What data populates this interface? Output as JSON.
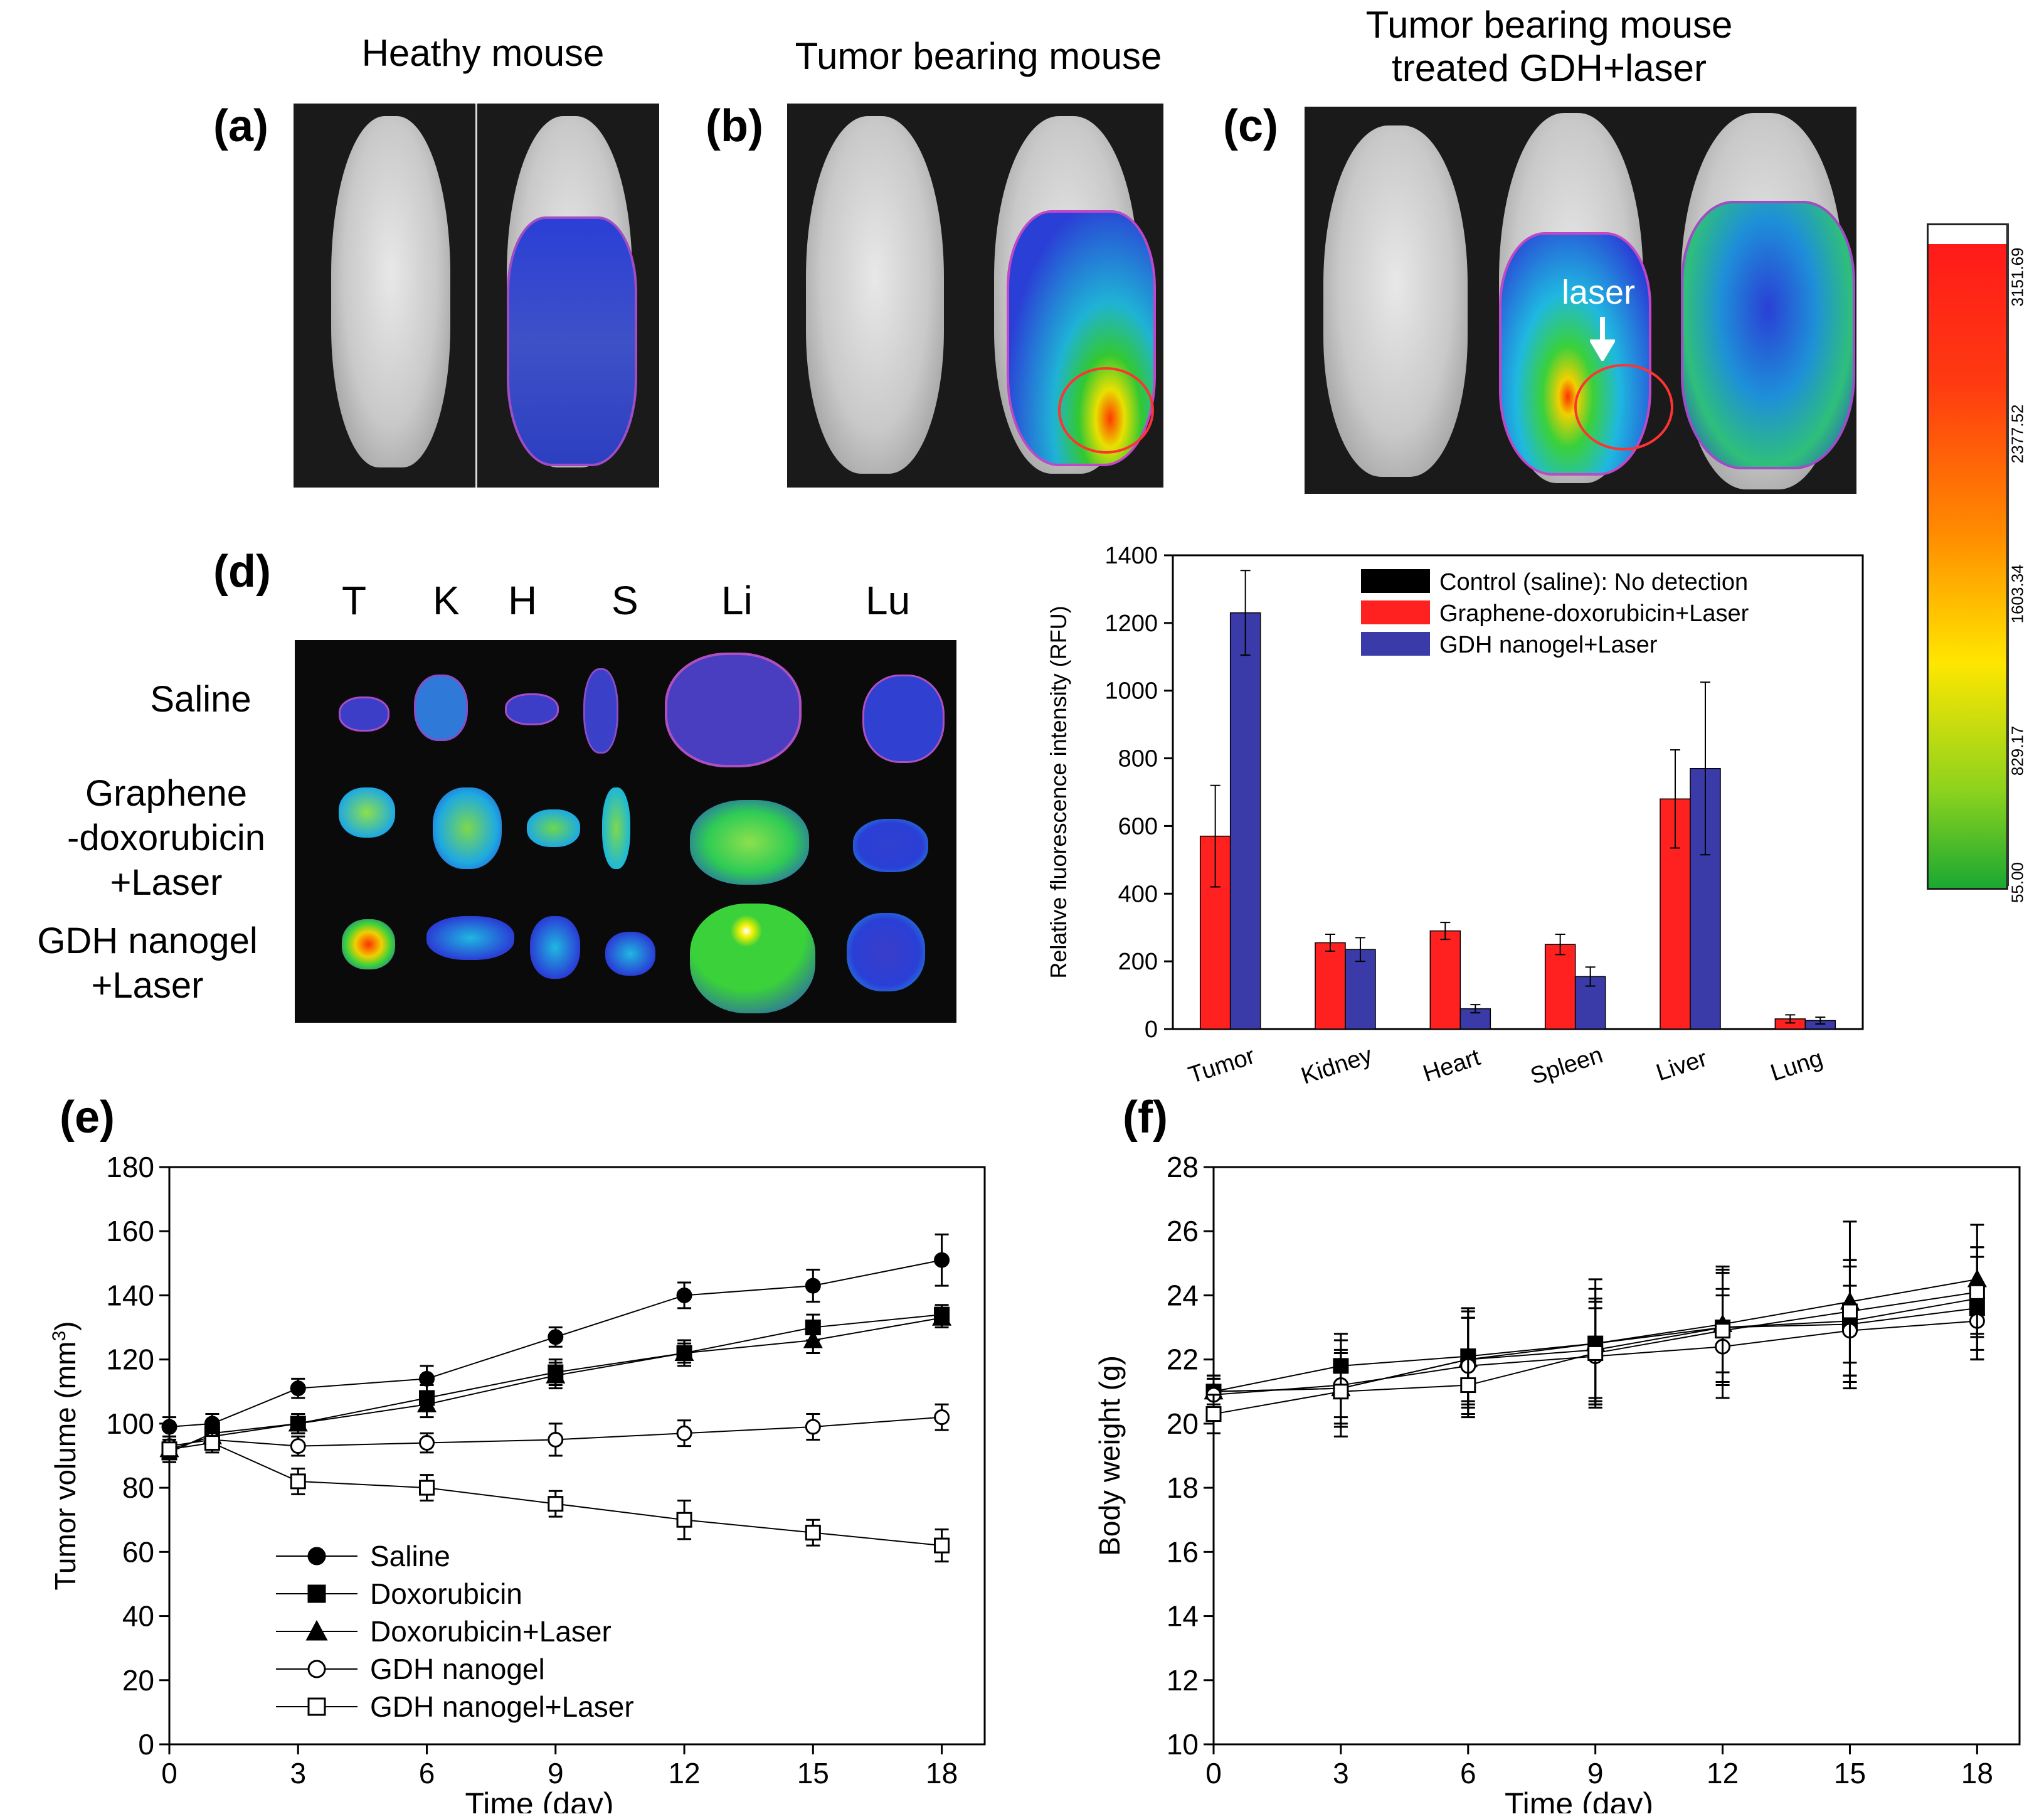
{
  "panels": {
    "a": {
      "label": "(a)",
      "title": "Heathy mouse"
    },
    "b": {
      "label": "(b)",
      "title": "Tumor bearing mouse"
    },
    "c": {
      "label": "(c)",
      "title": "Tumor bearing mouse treated GDH+laser",
      "title_line1": "Tumor bearing mouse",
      "title_line2": "treated GDH+laser",
      "annotation": "laser"
    },
    "d": {
      "label": "(d)",
      "columns": [
        "T",
        "K",
        "H",
        "S",
        "Li",
        "Lu"
      ],
      "rows": [
        "Saline",
        "Graphene -doxorubicin +Laser",
        "GDH nanogel +Laser"
      ],
      "row_lines": [
        [
          "Saline"
        ],
        [
          "Graphene",
          "-doxorubicin",
          "+Laser"
        ],
        [
          "GDH nanogel",
          "+Laser"
        ]
      ]
    },
    "e": {
      "label": "(e)"
    },
    "f": {
      "label": "(f)"
    }
  },
  "colorbar": {
    "ticks": [
      "3151.69",
      "2377.52",
      "1603.34",
      "829.17",
      "55.00"
    ]
  },
  "colors": {
    "red": "#ff2020",
    "blue": "#3a3aa8",
    "black": "#000000",
    "heat_blue": "#2a3fd6",
    "heat_green": "#3ad13a"
  },
  "chart_data": [
    {
      "id": "fluorescence",
      "type": "bar",
      "title": "",
      "xlabel": "",
      "ylabel": "Relative fluorescence intensity (RFU)",
      "ylim": [
        0,
        1400
      ],
      "yticks": [
        0,
        200,
        400,
        600,
        800,
        1000,
        1200,
        1400
      ],
      "categories": [
        "Tumor",
        "Kidney",
        "Heart",
        "Spleen",
        "Liver",
        "Lung"
      ],
      "legend": [
        "Control (saline): No detection",
        "Graphene-doxorubicin+Laser",
        "GDH nanogel+Laser"
      ],
      "legend_position": "top-right",
      "series": [
        {
          "name": "Graphene-doxorubicin+Laser",
          "color": "#ff2020",
          "values": [
            570,
            255,
            290,
            250,
            680,
            30
          ],
          "errors": [
            150,
            25,
            25,
            30,
            145,
            12
          ]
        },
        {
          "name": "GDH nanogel+Laser",
          "color": "#3a3aa8",
          "values": [
            1230,
            235,
            60,
            155,
            770,
            25
          ],
          "errors": [
            125,
            35,
            12,
            28,
            255,
            10
          ]
        }
      ]
    },
    {
      "id": "tumor_volume",
      "type": "line",
      "xlabel": "Time (day)",
      "ylabel": "Tumor volume (mm",
      "ylabel_sup": "3",
      "ylabel_end": ")",
      "xlim": [
        0,
        19
      ],
      "ylim": [
        0,
        180
      ],
      "xticks": [
        0,
        3,
        6,
        9,
        12,
        15,
        18
      ],
      "yticks": [
        0,
        20,
        40,
        60,
        80,
        100,
        120,
        140,
        160,
        180
      ],
      "x": [
        0,
        1,
        3,
        6,
        9,
        12,
        15,
        18
      ],
      "legend_position": "bottom-left",
      "series": [
        {
          "name": "Saline",
          "marker": "circle-filled",
          "values": [
            99,
            100,
            111,
            114,
            127,
            140,
            143,
            151
          ],
          "errors": [
            3,
            3,
            3,
            4,
            3,
            4,
            5,
            8
          ]
        },
        {
          "name": "Doxorubicin",
          "marker": "square-filled",
          "values": [
            91,
            97,
            100,
            108,
            116,
            122,
            130,
            134
          ],
          "errors": [
            3,
            3,
            3,
            4,
            4,
            4,
            4,
            3
          ]
        },
        {
          "name": "Doxorubicin+Laser",
          "marker": "triangle-filled",
          "values": [
            92,
            96,
            100,
            106,
            115,
            122,
            126,
            133
          ],
          "errors": [
            3,
            3,
            3,
            4,
            4,
            3,
            4,
            3
          ]
        },
        {
          "name": "GDH nanogel",
          "marker": "circle-open",
          "values": [
            93,
            95,
            93,
            94,
            95,
            97,
            99,
            102
          ],
          "errors": [
            3,
            3,
            3,
            3,
            5,
            4,
            4,
            4
          ]
        },
        {
          "name": "GDH nanogel+Laser",
          "marker": "square-open",
          "values": [
            92,
            94,
            82,
            80,
            75,
            70,
            66,
            62
          ],
          "errors": [
            3,
            3,
            4,
            4,
            4,
            6,
            4,
            5
          ]
        }
      ]
    },
    {
      "id": "body_weight",
      "type": "line",
      "xlabel": "Time (day)",
      "ylabel": "Body weight (g)",
      "xlim": [
        0,
        19
      ],
      "ylim": [
        10,
        28
      ],
      "xticks": [
        0,
        3,
        6,
        9,
        12,
        15,
        18
      ],
      "yticks": [
        10,
        12,
        14,
        16,
        18,
        20,
        22,
        24,
        26,
        28
      ],
      "x": [
        0,
        3,
        6,
        9,
        12,
        15,
        18
      ],
      "series": [
        {
          "name": "Saline",
          "marker": "circle-filled",
          "values": [
            21.0,
            21.1,
            22.0,
            22.3,
            23.0,
            23.2,
            23.9
          ],
          "errors": [
            0.5,
            1.5,
            1.5,
            1.6,
            1.7,
            1.7,
            1.6
          ]
        },
        {
          "name": "Doxorubicin",
          "marker": "square-filled",
          "values": [
            21.0,
            21.8,
            22.1,
            22.5,
            23.0,
            23.1,
            23.6
          ],
          "errors": [
            0.5,
            1.0,
            1.5,
            1.7,
            1.8,
            2.0,
            1.6
          ]
        },
        {
          "name": "Doxorubicin+Laser",
          "marker": "triangle-filled",
          "values": [
            21.0,
            21.1,
            22.0,
            22.5,
            23.1,
            23.8,
            24.5
          ],
          "errors": [
            0.4,
            1.2,
            1.3,
            2.0,
            1.8,
            2.5,
            1.7
          ]
        },
        {
          "name": "GDH nanogel",
          "marker": "circle-open",
          "values": [
            20.9,
            21.2,
            21.8,
            22.1,
            22.4,
            22.9,
            23.2
          ],
          "errors": [
            0.5,
            1.0,
            1.5,
            1.5,
            1.6,
            1.4,
            1.2
          ]
        },
        {
          "name": "GDH nanogel+Laser",
          "marker": "square-open",
          "values": [
            20.3,
            21.0,
            21.2,
            22.2,
            22.9,
            23.5,
            24.1
          ],
          "errors": [
            0.6,
            1.0,
            1.0,
            1.6,
            1.3,
            1.6,
            1.4
          ]
        }
      ]
    }
  ]
}
